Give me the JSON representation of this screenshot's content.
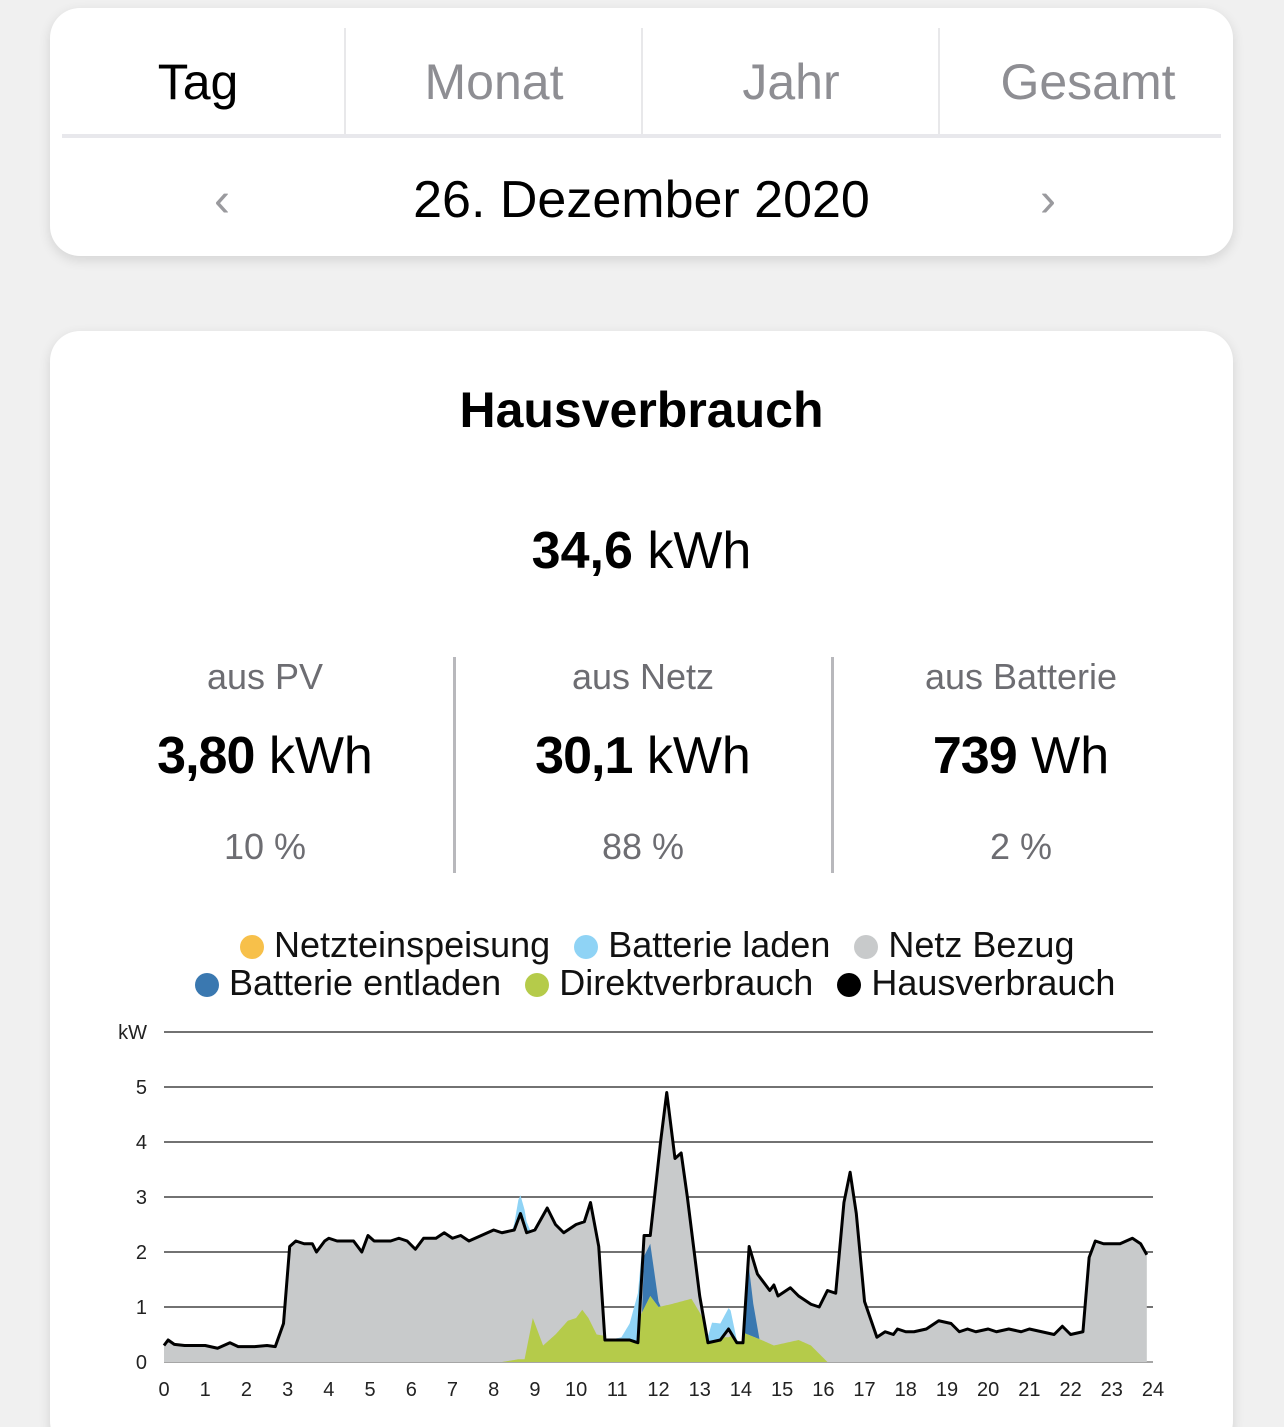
{
  "tabs": [
    {
      "label": "Tag",
      "active": true
    },
    {
      "label": "Monat"
    },
    {
      "label": "Jahr"
    },
    {
      "label": "Gesamt"
    }
  ],
  "date": "26. Dezember 2020",
  "card": {
    "title": "Hausverbrauch",
    "total_value": "34,6",
    "total_unit": "kWh",
    "columns": [
      {
        "label": "aus PV",
        "value": "3,80",
        "unit": "kWh",
        "percent": "10 %"
      },
      {
        "label": "aus Netz",
        "value": "30,1",
        "unit": "kWh",
        "percent": "88 %"
      },
      {
        "label": "aus Batterie",
        "value": "739",
        "unit": "Wh",
        "percent": "2 %"
      }
    ]
  },
  "legend": [
    {
      "label": "Netzteinspeisung",
      "color": "#f7c04a"
    },
    {
      "label": "Batterie laden",
      "color": "#8fd3f5"
    },
    {
      "label": "Netz Bezug",
      "color": "#c8cacb"
    },
    {
      "label": "Batterie entladen",
      "color": "#3a78b0"
    },
    {
      "label": "Direktverbrauch",
      "color": "#b5cb4a"
    },
    {
      "label": "Hausverbrauch",
      "color": "#000000"
    }
  ],
  "chart_data": {
    "type": "area",
    "ylabel": "kW",
    "xlim": [
      0,
      24
    ],
    "ylim": [
      0,
      6
    ],
    "yticks": [
      "0",
      "1",
      "2",
      "3",
      "4",
      "5"
    ],
    "xticks": [
      "0",
      "1",
      "2",
      "3",
      "4",
      "5",
      "6",
      "7",
      "8",
      "9",
      "10",
      "11",
      "12",
      "13",
      "14",
      "15",
      "16",
      "17",
      "18",
      "19",
      "20",
      "21",
      "22",
      "23",
      "24"
    ],
    "house": [
      [
        0,
        0.3
      ],
      [
        0.1,
        0.4
      ],
      [
        0.25,
        0.32
      ],
      [
        0.5,
        0.3
      ],
      [
        1,
        0.3
      ],
      [
        1.3,
        0.25
      ],
      [
        1.6,
        0.35
      ],
      [
        1.8,
        0.28
      ],
      [
        2.2,
        0.28
      ],
      [
        2.5,
        0.3
      ],
      [
        2.7,
        0.28
      ],
      [
        2.9,
        0.7
      ],
      [
        3.05,
        2.1
      ],
      [
        3.2,
        2.2
      ],
      [
        3.4,
        2.15
      ],
      [
        3.6,
        2.15
      ],
      [
        3.7,
        2.0
      ],
      [
        3.9,
        2.2
      ],
      [
        4.0,
        2.25
      ],
      [
        4.2,
        2.2
      ],
      [
        4.6,
        2.2
      ],
      [
        4.8,
        2.0
      ],
      [
        4.95,
        2.3
      ],
      [
        5.1,
        2.2
      ],
      [
        5.5,
        2.2
      ],
      [
        5.7,
        2.25
      ],
      [
        5.9,
        2.2
      ],
      [
        6.1,
        2.05
      ],
      [
        6.3,
        2.25
      ],
      [
        6.6,
        2.25
      ],
      [
        6.8,
        2.35
      ],
      [
        7.0,
        2.25
      ],
      [
        7.2,
        2.3
      ],
      [
        7.4,
        2.2
      ],
      [
        7.7,
        2.3
      ],
      [
        8.0,
        2.4
      ],
      [
        8.2,
        2.35
      ],
      [
        8.5,
        2.4
      ],
      [
        8.65,
        2.7
      ],
      [
        8.8,
        2.35
      ],
      [
        9.0,
        2.4
      ],
      [
        9.3,
        2.8
      ],
      [
        9.5,
        2.5
      ],
      [
        9.7,
        2.35
      ],
      [
        10.0,
        2.5
      ],
      [
        10.2,
        2.55
      ],
      [
        10.35,
        2.9
      ],
      [
        10.55,
        2.1
      ],
      [
        10.7,
        0.4
      ],
      [
        11.0,
        0.4
      ],
      [
        11.3,
        0.4
      ],
      [
        11.5,
        0.35
      ],
      [
        11.65,
        2.3
      ],
      [
        11.8,
        2.3
      ],
      [
        12.05,
        4.0
      ],
      [
        12.2,
        4.9
      ],
      [
        12.4,
        3.7
      ],
      [
        12.55,
        3.8
      ],
      [
        12.7,
        3.0
      ],
      [
        13.0,
        1.2
      ],
      [
        13.2,
        0.35
      ],
      [
        13.5,
        0.4
      ],
      [
        13.7,
        0.6
      ],
      [
        13.9,
        0.35
      ],
      [
        14.05,
        0.35
      ],
      [
        14.2,
        2.1
      ],
      [
        14.4,
        1.6
      ],
      [
        14.7,
        1.3
      ],
      [
        14.8,
        1.4
      ],
      [
        14.9,
        1.2
      ],
      [
        15.2,
        1.35
      ],
      [
        15.4,
        1.2
      ],
      [
        15.7,
        1.05
      ],
      [
        15.9,
        1.0
      ],
      [
        16.1,
        1.3
      ],
      [
        16.3,
        1.25
      ],
      [
        16.5,
        2.9
      ],
      [
        16.65,
        3.45
      ],
      [
        16.8,
        2.7
      ],
      [
        17.0,
        1.1
      ],
      [
        17.3,
        0.45
      ],
      [
        17.5,
        0.55
      ],
      [
        17.7,
        0.5
      ],
      [
        17.8,
        0.6
      ],
      [
        18.0,
        0.55
      ],
      [
        18.2,
        0.55
      ],
      [
        18.5,
        0.6
      ],
      [
        18.8,
        0.75
      ],
      [
        19.1,
        0.7
      ],
      [
        19.3,
        0.55
      ],
      [
        19.5,
        0.6
      ],
      [
        19.7,
        0.55
      ],
      [
        20.0,
        0.6
      ],
      [
        20.2,
        0.55
      ],
      [
        20.5,
        0.6
      ],
      [
        20.8,
        0.55
      ],
      [
        21.0,
        0.6
      ],
      [
        21.3,
        0.55
      ],
      [
        21.6,
        0.5
      ],
      [
        21.8,
        0.65
      ],
      [
        22.0,
        0.5
      ],
      [
        22.3,
        0.55
      ],
      [
        22.45,
        1.9
      ],
      [
        22.6,
        2.2
      ],
      [
        22.8,
        2.15
      ],
      [
        23.2,
        2.15
      ],
      [
        23.5,
        2.25
      ],
      [
        23.7,
        2.15
      ],
      [
        23.85,
        1.95
      ]
    ],
    "battery_charge": [
      [
        8.45,
        0
      ],
      [
        8.6,
        0.35
      ],
      [
        8.75,
        0.3
      ],
      [
        8.9,
        0
      ],
      [
        10.8,
        0
      ],
      [
        11.1,
        0.05
      ],
      [
        11.3,
        0.3
      ],
      [
        11.5,
        0.9
      ],
      [
        11.62,
        0.3
      ],
      [
        11.65,
        0
      ],
      [
        13.15,
        0
      ],
      [
        13.3,
        0.35
      ],
      [
        13.5,
        0.3
      ],
      [
        13.75,
        0.4
      ],
      [
        13.9,
        0.05
      ],
      [
        14.0,
        0
      ]
    ],
    "battery_discharge": [
      [
        11.6,
        0
      ],
      [
        11.65,
        0.95
      ],
      [
        11.8,
        0.95
      ],
      [
        12.0,
        0.1
      ],
      [
        12.05,
        0
      ],
      [
        14.05,
        0
      ],
      [
        14.15,
        1.5
      ],
      [
        14.3,
        0.6
      ],
      [
        14.45,
        0
      ],
      [
        24,
        0
      ]
    ],
    "direct": [
      [
        8.2,
        0
      ],
      [
        8.6,
        0.05
      ],
      [
        8.75,
        0.05
      ],
      [
        8.95,
        0.8
      ],
      [
        9.2,
        0.3
      ],
      [
        9.5,
        0.5
      ],
      [
        9.8,
        0.75
      ],
      [
        10.0,
        0.8
      ],
      [
        10.15,
        0.95
      ],
      [
        10.3,
        0.8
      ],
      [
        10.5,
        0.5
      ],
      [
        11.3,
        0.4
      ],
      [
        11.6,
        0.9
      ],
      [
        11.8,
        1.2
      ],
      [
        12.0,
        1.0
      ],
      [
        12.3,
        1.05
      ],
      [
        12.8,
        1.15
      ],
      [
        13.0,
        0.9
      ],
      [
        13.3,
        0.45
      ],
      [
        13.7,
        0.45
      ],
      [
        14.0,
        0.55
      ],
      [
        14.5,
        0.4
      ],
      [
        14.8,
        0.3
      ],
      [
        15.1,
        0.35
      ],
      [
        15.4,
        0.4
      ],
      [
        15.7,
        0.3
      ],
      [
        16.1,
        0
      ]
    ]
  }
}
